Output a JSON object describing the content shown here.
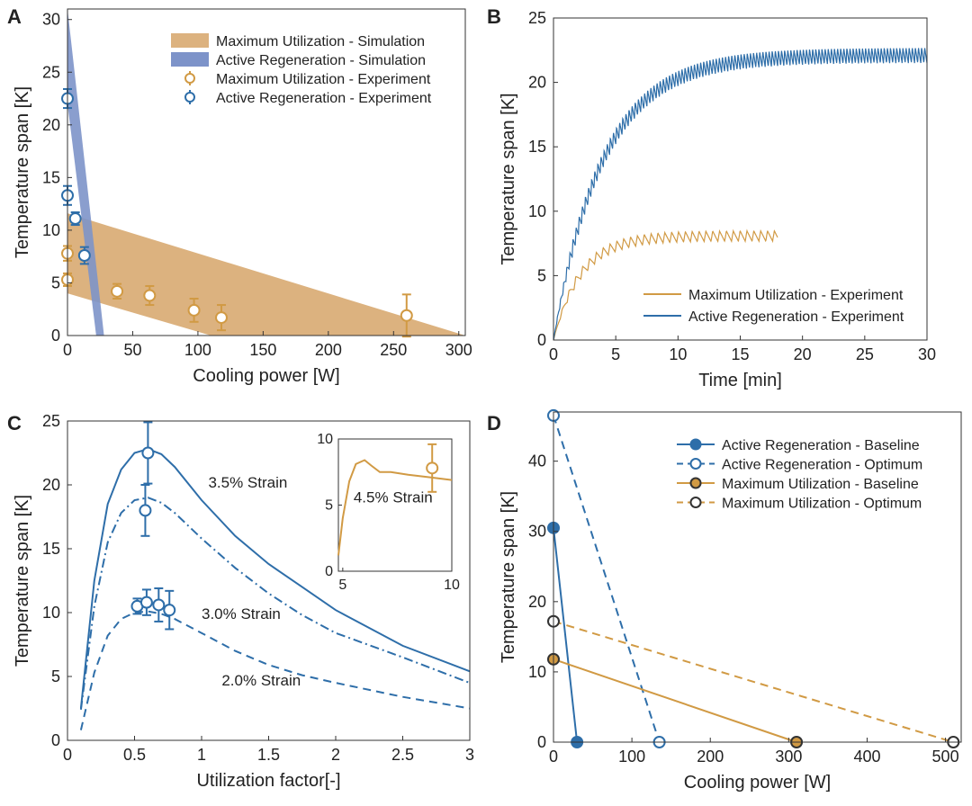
{
  "colors": {
    "blue": "#2e6ea9",
    "orange": "#d19a44",
    "blue_band": "#7d93c9",
    "orange_band": "#dcb27f"
  },
  "panels": {
    "A": {
      "letter": "A"
    },
    "B": {
      "letter": "B"
    },
    "C": {
      "letter": "C"
    },
    "D": {
      "letter": "D"
    }
  },
  "chart_data": [
    {
      "panel": "A",
      "type": "scatter",
      "xlabel": "Cooling power [W]",
      "ylabel": "Temperature span [K]",
      "xlim": [
        0,
        305
      ],
      "ylim": [
        0,
        31
      ],
      "xticks": [
        0,
        50,
        100,
        150,
        200,
        250,
        300
      ],
      "yticks": [
        0,
        5,
        10,
        15,
        20,
        25,
        30
      ],
      "legend_position": "top-right",
      "bands": [
        {
          "name": "Maximum Utilization - Simulation",
          "color_key": "orange_band",
          "polygon": [
            [
              0,
              11.6
            ],
            [
              305,
              0
            ],
            [
              110,
              0
            ],
            [
              0,
              4
            ]
          ]
        },
        {
          "name": "Active Regeneration - Simulation",
          "color_key": "blue_band",
          "polygon": [
            [
              0,
              31
            ],
            [
              28,
              0
            ],
            [
              22,
              0
            ],
            [
              0,
              22
            ]
          ]
        }
      ],
      "series": [
        {
          "name": "Maximum Utilization - Experiment",
          "color_key": "orange",
          "points": [
            [
              0,
              7.8,
              0.7
            ],
            [
              0,
              5.3,
              0.6
            ],
            [
              38,
              4.2,
              0.7
            ],
            [
              63,
              3.8,
              0.9
            ],
            [
              97,
              2.4,
              1.1
            ],
            [
              118,
              1.7,
              1.2
            ],
            [
              260,
              1.9,
              2.0
            ]
          ]
        },
        {
          "name": "Active Regeneration - Experiment",
          "color_key": "blue",
          "points": [
            [
              0,
              22.5,
              0.9
            ],
            [
              0,
              13.3,
              0.9
            ],
            [
              6,
              11.1,
              0.6
            ],
            [
              13,
              7.6,
              0.8
            ]
          ]
        }
      ]
    },
    {
      "panel": "B",
      "type": "line",
      "xlabel": "Time [min]",
      "ylabel": "Temperature span [K]",
      "xlim": [
        0,
        30
      ],
      "ylim": [
        0,
        25
      ],
      "xticks": [
        0,
        5,
        10,
        15,
        20,
        25,
        30
      ],
      "yticks": [
        0,
        5,
        10,
        15,
        20,
        25
      ],
      "legend_position": "bottom-right",
      "series": [
        {
          "name": "Maximum Utilization - Experiment",
          "color_key": "orange",
          "t_end": 18,
          "settle": 8,
          "tau": 2.2,
          "period": 0.55,
          "amp": 0.8
        },
        {
          "name": "Active Regeneration - Experiment",
          "color_key": "blue",
          "t_end": 30,
          "settle": 22,
          "tau": 4.0,
          "period": 0.25,
          "amp": 1.2
        }
      ]
    },
    {
      "panel": "C",
      "type": "line",
      "xlabel": "Utilization factor[-]",
      "ylabel": "Temperature span [K]",
      "xlim": [
        0,
        3
      ],
      "ylim": [
        0,
        25
      ],
      "xticks": [
        0,
        0.5,
        1,
        1.5,
        2,
        2.5,
        3
      ],
      "yticks": [
        0,
        5,
        10,
        15,
        20,
        25
      ],
      "series": [
        {
          "label": "3.5% Strain",
          "dash": "solid",
          "x": [
            0.1,
            0.2,
            0.3,
            0.4,
            0.5,
            0.6,
            0.7,
            0.8,
            1.0,
            1.25,
            1.5,
            1.75,
            2.0,
            2.5,
            3.0
          ],
          "y": [
            2.5,
            12.5,
            18.5,
            21.2,
            22.5,
            22.8,
            22.4,
            21.4,
            18.8,
            16.0,
            13.8,
            12.0,
            10.2,
            7.4,
            5.4
          ]
        },
        {
          "label": "",
          "dash": "dashdot",
          "x": [
            0.1,
            0.2,
            0.3,
            0.4,
            0.5,
            0.6,
            0.7,
            0.8,
            1.0,
            1.25,
            1.5,
            1.75,
            2.0,
            2.5,
            3.0
          ],
          "y": [
            2.4,
            10.5,
            15.5,
            17.8,
            18.8,
            19.0,
            18.6,
            17.8,
            15.8,
            13.5,
            11.5,
            9.8,
            8.4,
            6.5,
            4.5
          ]
        },
        {
          "label": "2.0% Strain",
          "dash": "dashed",
          "x": [
            0.1,
            0.2,
            0.3,
            0.4,
            0.5,
            0.6,
            0.7,
            0.8,
            1.0,
            1.25,
            1.5,
            1.75,
            2.0,
            2.5,
            3.0
          ],
          "y": [
            0.8,
            5.3,
            8.2,
            9.5,
            10.0,
            10.1,
            9.9,
            9.5,
            8.4,
            7.0,
            5.9,
            5.1,
            4.5,
            3.4,
            2.5
          ]
        }
      ],
      "points": [
        {
          "x": 0.6,
          "y": 22.5,
          "err": 2.4
        },
        {
          "x": 0.58,
          "y": 18.0,
          "err": 2.0
        },
        {
          "x": 0.52,
          "y": 10.5,
          "err": 0.6
        },
        {
          "x": 0.59,
          "y": 10.8,
          "err": 1.0
        },
        {
          "x": 0.68,
          "y": 10.6,
          "err": 1.3
        },
        {
          "x": 0.76,
          "y": 10.2,
          "err": 1.5
        }
      ],
      "annotations": [
        {
          "text": "3.5% Strain",
          "x": 1.05,
          "y": 19.8
        },
        {
          "text": "3.0% Strain",
          "x": 1.0,
          "y": 9.5
        },
        {
          "text": "2.0% Strain",
          "x": 1.15,
          "y": 4.3
        }
      ],
      "inset": {
        "xlim": [
          4.8,
          10
        ],
        "ylim": [
          0,
          10
        ],
        "xticks": [
          5,
          10
        ],
        "yticks": [
          0,
          5,
          10
        ],
        "curve_x": [
          4.8,
          5.0,
          5.3,
          5.6,
          6.0,
          6.3,
          6.7,
          7.2,
          8.0,
          9.0,
          10.0
        ],
        "curve_y": [
          1.2,
          4.0,
          6.8,
          8.1,
          8.4,
          8.0,
          7.5,
          7.5,
          7.3,
          7.1,
          6.9
        ],
        "point": {
          "x": 9.1,
          "y": 7.8,
          "err": 1.8
        },
        "label": "4.5% Strain",
        "label_x": 5.0,
        "label_y": 5.6
      }
    },
    {
      "panel": "D",
      "type": "line",
      "xlabel": "Cooling power [W]",
      "ylabel": "Temperature span [K]",
      "xlim": [
        0,
        520
      ],
      "ylim": [
        0,
        47
      ],
      "xticks": [
        0,
        100,
        200,
        300,
        400,
        500
      ],
      "yticks": [
        0,
        10,
        20,
        30,
        40
      ],
      "legend_position": "top-right",
      "series": [
        {
          "name": "Active Regeneration - Baseline",
          "color_key": "blue",
          "dash": "solid",
          "fill": "blue",
          "points": [
            [
              0,
              30.5
            ],
            [
              30,
              0
            ]
          ]
        },
        {
          "name": "Active Regeneration - Optimum",
          "color_key": "blue",
          "dash": "dashed",
          "fill": "none",
          "points": [
            [
              0,
              46.5
            ],
            [
              135,
              0
            ]
          ]
        },
        {
          "name": "Maximum Utilization - Baseline",
          "color_key": "orange",
          "dash": "solid",
          "fill": "orange",
          "points": [
            [
              0,
              11.8
            ],
            [
              310,
              0
            ]
          ]
        },
        {
          "name": "Maximum Utilization - Optimum",
          "color_key": "orange",
          "dash": "dashed",
          "fill": "none",
          "points": [
            [
              0,
              17.2
            ],
            [
              510,
              0
            ]
          ]
        }
      ]
    }
  ]
}
